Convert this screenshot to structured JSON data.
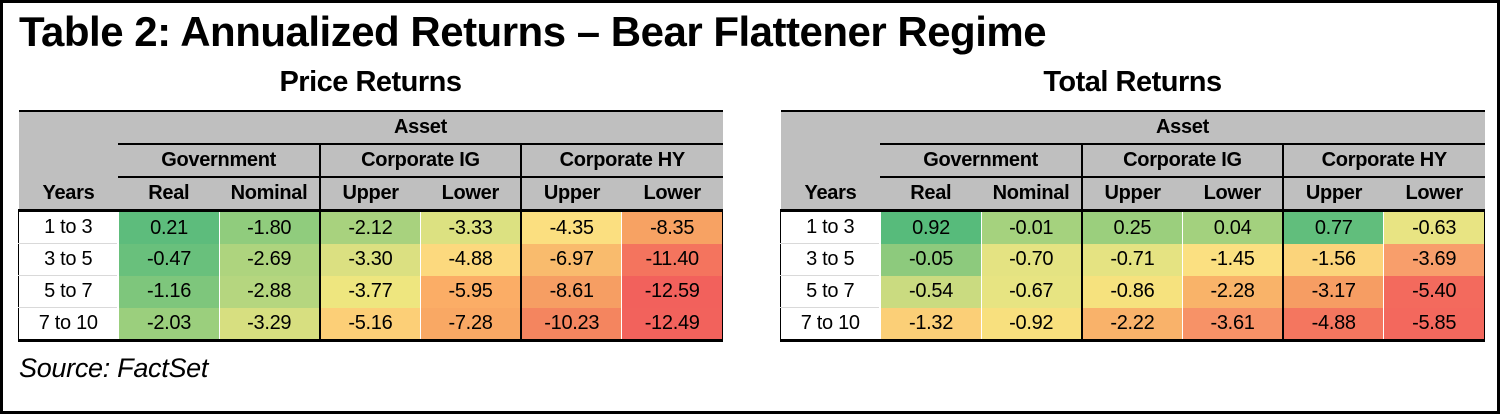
{
  "title": "Table 2: Annualized Returns – Bear Flattener Regime",
  "source": "Source: FactSet",
  "colors": {
    "header_bg": "#bfbfbf",
    "border": "#000000",
    "years_separator": "#d9d9d9"
  },
  "tables": [
    {
      "heading": "Price Returns",
      "asset_label": "Asset",
      "years_label": "Years",
      "groups": [
        {
          "label": "Government",
          "cols": [
            "Real",
            "Nominal"
          ]
        },
        {
          "label": "Corporate IG",
          "cols": [
            "Upper",
            "Lower"
          ]
        },
        {
          "label": "Corporate HY",
          "cols": [
            "Upper",
            "Lower"
          ]
        }
      ],
      "rows": [
        {
          "years": "1 to 3",
          "values": [
            "0.21",
            "-1.80",
            "-2.12",
            "-3.33",
            "-4.35",
            "-8.35"
          ],
          "cell_colors": [
            "#5dbc7c",
            "#90cc7d",
            "#a8d27e",
            "#dce181",
            "#fbdf80",
            "#f7a263"
          ]
        },
        {
          "years": "3 to 5",
          "values": [
            "-0.47",
            "-2.69",
            "-3.30",
            "-4.88",
            "-6.97",
            "-11.40"
          ],
          "cell_colors": [
            "#69c07c",
            "#aed47e",
            "#dbe081",
            "#fcd97e",
            "#f9bb6d",
            "#f4745e"
          ]
        },
        {
          "years": "5 to 7",
          "values": [
            "-1.16",
            "-2.88",
            "-3.77",
            "-5.95",
            "-8.61",
            "-12.59"
          ],
          "cell_colors": [
            "#7ec67c",
            "#b5d67f",
            "#eee67f",
            "#fbad66",
            "#f69e63",
            "#f2615c"
          ]
        },
        {
          "years": "7 to 10",
          "values": [
            "-2.03",
            "-3.29",
            "-5.16",
            "-7.28",
            "-10.23",
            "-12.49"
          ],
          "cell_colors": [
            "#9bcf7d",
            "#d7df80",
            "#fccf77",
            "#f9a864",
            "#f4855f",
            "#f2625c"
          ]
        }
      ]
    },
    {
      "heading": "Total Returns",
      "asset_label": "Asset",
      "years_label": "Years",
      "groups": [
        {
          "label": "Government",
          "cols": [
            "Real",
            "Nominal"
          ]
        },
        {
          "label": "Corporate IG",
          "cols": [
            "Upper",
            "Lower"
          ]
        },
        {
          "label": "Corporate HY",
          "cols": [
            "Upper",
            "Lower"
          ]
        }
      ],
      "rows": [
        {
          "years": "1 to 3",
          "values": [
            "0.92",
            "-0.01",
            "0.25",
            "0.04",
            "0.77",
            "-0.63"
          ],
          "cell_colors": [
            "#57bb7b",
            "#a5d27e",
            "#9bcf7d",
            "#a3d17e",
            "#61be7c",
            "#e8e483"
          ]
        },
        {
          "years": "3 to 5",
          "values": [
            "-0.05",
            "-0.70",
            "-0.71",
            "-1.45",
            "-1.56",
            "-3.69"
          ],
          "cell_colors": [
            "#8dca7d",
            "#e4e382",
            "#e5e382",
            "#fbe081",
            "#fbd47b",
            "#f89e6b"
          ]
        },
        {
          "years": "5 to 7",
          "values": [
            "-0.54",
            "-0.67",
            "-0.86",
            "-2.28",
            "-3.17",
            "-5.40"
          ],
          "cell_colors": [
            "#cadb80",
            "#e7e482",
            "#f6e27e",
            "#f9b369",
            "#f69d63",
            "#f36a5d"
          ]
        },
        {
          "years": "7 to 10",
          "values": [
            "-1.32",
            "-0.92",
            "-2.22",
            "-3.61",
            "-4.88",
            "-5.85"
          ],
          "cell_colors": [
            "#fbcf77",
            "#f8e07e",
            "#f9b26a",
            "#f79267",
            "#f4765f",
            "#f3685d"
          ]
        }
      ]
    }
  ]
}
